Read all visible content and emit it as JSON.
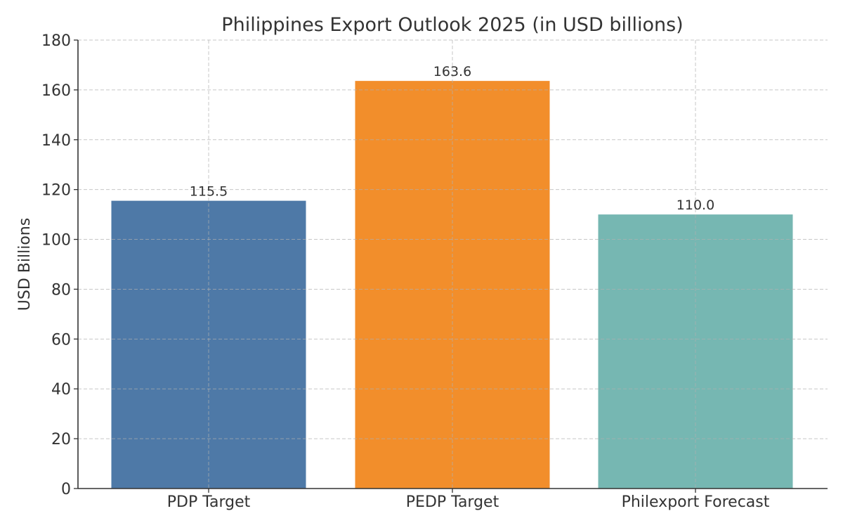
{
  "chart_data": {
    "type": "bar",
    "title": "Philippines Export Outlook 2025 (in USD billions)",
    "xlabel": "",
    "ylabel": "USD Billions",
    "categories": [
      "PDP Target",
      "PEDP Target",
      "Philexport Forecast"
    ],
    "values": [
      115.5,
      163.6,
      110.0
    ],
    "data_labels": [
      "115.5",
      "163.6",
      "110.0"
    ],
    "colors": [
      "#4e79a7",
      "#f28e2b",
      "#76b7b2"
    ],
    "ylim": [
      0,
      180
    ],
    "yticks": [
      0,
      20,
      40,
      60,
      80,
      100,
      120,
      140,
      160,
      180
    ],
    "grid": true,
    "legend": "none"
  }
}
